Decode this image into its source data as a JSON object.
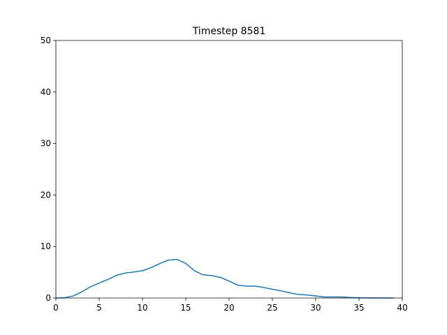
{
  "chart_data": {
    "type": "line",
    "title": "Timestep 8581",
    "xlabel": "",
    "ylabel": "",
    "xlim": [
      0,
      40
    ],
    "ylim": [
      0,
      50
    ],
    "xticks": [
      0,
      5,
      10,
      15,
      20,
      25,
      30,
      35,
      40
    ],
    "yticks": [
      0,
      10,
      20,
      30,
      40,
      50
    ],
    "grid": false,
    "series": [
      {
        "color": "#1f77b4",
        "x": [
          0,
          1,
          2,
          3,
          4,
          5,
          6,
          7,
          8,
          9,
          10,
          11,
          12,
          13,
          14,
          15,
          16,
          17,
          18,
          19,
          20,
          21,
          22,
          23,
          24,
          25,
          26,
          27,
          28,
          29,
          30,
          31,
          32,
          33,
          34,
          35,
          36,
          37,
          38,
          39
        ],
        "y": [
          0,
          0.05,
          0.4,
          1.2,
          2.2,
          2.9,
          3.6,
          4.4,
          4.85,
          5.05,
          5.3,
          5.9,
          6.7,
          7.35,
          7.5,
          6.7,
          5.3,
          4.5,
          4.35,
          4.0,
          3.3,
          2.5,
          2.3,
          2.3,
          2.05,
          1.7,
          1.4,
          1.0,
          0.7,
          0.6,
          0.4,
          0.2,
          0.2,
          0.2,
          0.1,
          0.05,
          0.02,
          0.01,
          0.0,
          0.0
        ]
      }
    ]
  }
}
